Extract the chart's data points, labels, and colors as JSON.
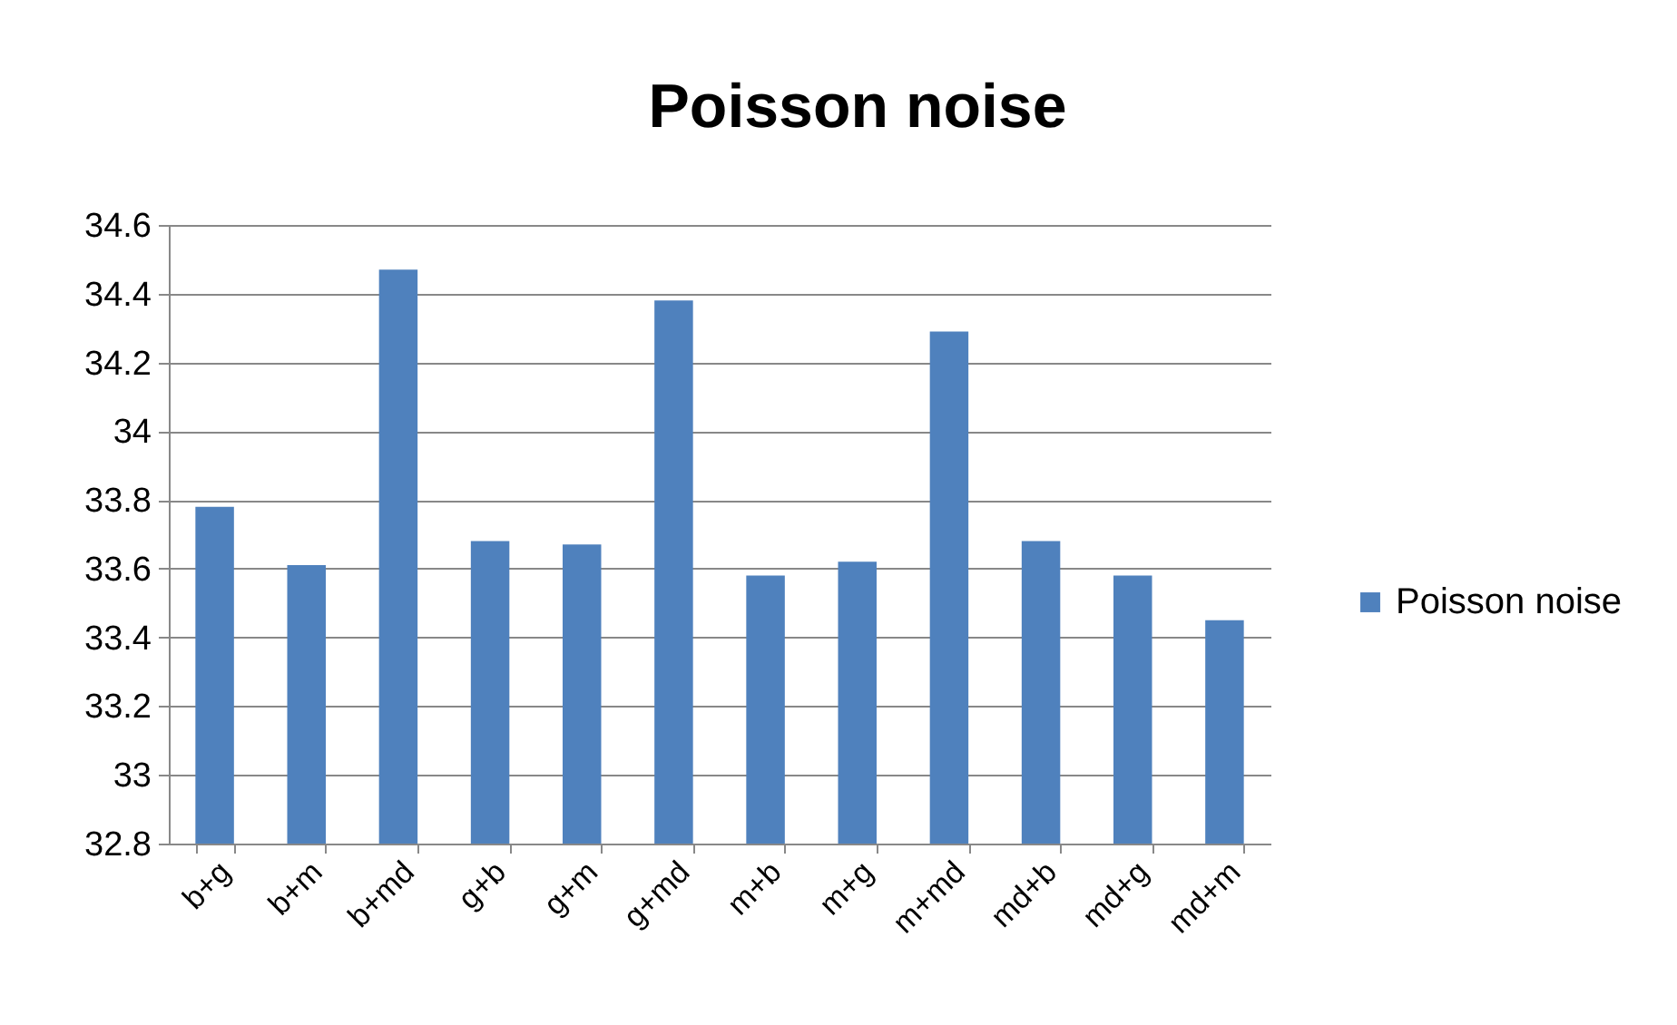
{
  "chart_data": {
    "type": "bar",
    "title": "Poisson noise",
    "categories": [
      "b+g",
      "b+m",
      "b+md",
      "g+b",
      "g+m",
      "g+md",
      "m+b",
      "m+g",
      "m+md",
      "md+b",
      "md+g",
      "md+m"
    ],
    "series": [
      {
        "name": "Poisson noise",
        "color": "#4f81bd",
        "values": [
          33.78,
          33.61,
          34.47,
          33.68,
          33.67,
          34.38,
          33.58,
          33.62,
          34.29,
          33.68,
          33.58,
          33.45
        ]
      }
    ],
    "ylim": [
      32.8,
      34.6
    ],
    "yticks": [
      32.8,
      33,
      33.2,
      33.4,
      33.6,
      33.8,
      34,
      34.2,
      34.4,
      34.6
    ],
    "grid": "y",
    "legend": "right"
  }
}
